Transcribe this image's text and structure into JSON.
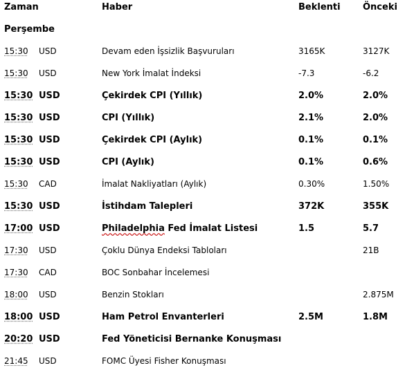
{
  "headers": {
    "time": "Zaman",
    "news": "Haber",
    "expected": "Beklenti",
    "previous": "Önceki"
  },
  "day": "Perşembe",
  "events": [
    {
      "time": "15:30",
      "currency": "USD",
      "news": "Devam eden İşsizlik Başvuruları",
      "expected": "3165K",
      "previous": "3127K",
      "bold": false
    },
    {
      "time": "15:30",
      "currency": "USD",
      "news": "New York İmalat İndeksi",
      "expected": "-7.3",
      "previous": "-6.2",
      "bold": false
    },
    {
      "time": "15:30",
      "currency": "USD",
      "news": "Çekirdek CPI (Yıllık)",
      "expected": "2.0%",
      "previous": "2.0%",
      "bold": true
    },
    {
      "time": "15:30",
      "currency": "USD",
      "news": "CPI (Yıllık)",
      "expected": "2.1%",
      "previous": "2.0%",
      "bold": true
    },
    {
      "time": "15:30",
      "currency": "USD",
      "news": "Çekirdek CPI (Aylık)",
      "expected": "0.1%",
      "previous": "0.1%",
      "bold": true
    },
    {
      "time": "15:30",
      "currency": "USD",
      "news": "CPI (Aylık)",
      "expected": "0.1%",
      "previous": "0.6%",
      "bold": true
    },
    {
      "time": "15:30",
      "currency": "CAD",
      "news": "İmalat Nakliyatları (Aylık)",
      "expected": "0.30%",
      "previous": "1.50%",
      "bold": false
    },
    {
      "time": "15:30",
      "currency": "USD",
      "news": "İstihdam Talepleri",
      "expected": "372K",
      "previous": "355K",
      "bold": true
    },
    {
      "time": "17:00",
      "currency": "USD",
      "news": "Philadelphia Fed İmalat Listesi",
      "expected": "1.5",
      "previous": "5.7",
      "bold": true
    },
    {
      "time": "17:30",
      "currency": "USD",
      "news": "Çoklu Dünya Endeksi Tabloları",
      "expected": "",
      "previous": "21B",
      "bold": false
    },
    {
      "time": "17:30",
      "currency": "CAD",
      "news": "BOC Sonbahar İncelemesi",
      "expected": "",
      "previous": "",
      "bold": false
    },
    {
      "time": "18:00",
      "currency": "USD",
      "news": "Benzin Stokları",
      "expected": "",
      "previous": "2.875M",
      "bold": false
    },
    {
      "time": "18:00",
      "currency": "USD",
      "news": "Ham Petrol Envanterleri",
      "expected": "2.5M",
      "previous": "1.8M",
      "bold": true
    },
    {
      "time": "20:20",
      "currency": "USD",
      "news": "Fed Yöneticisi Bernanke Konuşması",
      "expected": "",
      "previous": "",
      "bold": true
    },
    {
      "time": "21:45",
      "currency": "USD",
      "news": "FOMC Üyesi Fisher Konuşması",
      "expected": "",
      "previous": "",
      "bold": false
    }
  ]
}
